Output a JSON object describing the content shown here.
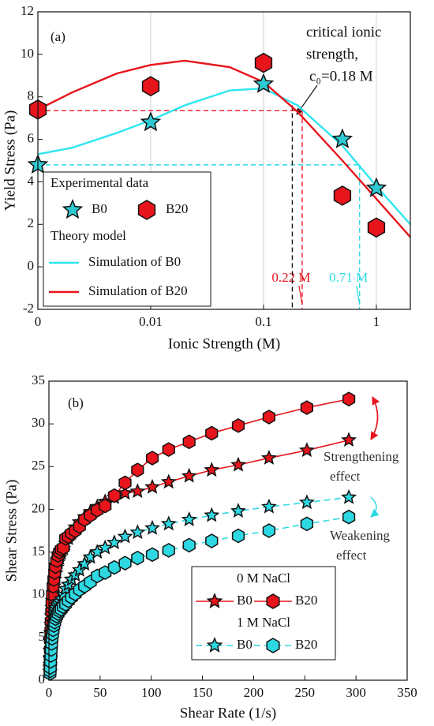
{
  "chart_data": [
    {
      "type": "scatter",
      "panel_label": "(a)",
      "x_label": "Ionic Strength (M)",
      "y_label": "Yield Stress (Pa)",
      "x_log": true,
      "xlim": [
        0.001,
        2
      ],
      "xticks": [
        {
          "value": 0.001,
          "label": "0"
        },
        0.01,
        0.1,
        1
      ],
      "ylim": [
        -2,
        12
      ],
      "yticks": [
        -2,
        0,
        2,
        4,
        6,
        8,
        10,
        12
      ],
      "xgrid": true,
      "legend_titles": [
        "Experimental data",
        "Theory model"
      ],
      "series": [
        {
          "name": "B0",
          "color": "#2ec9d2",
          "marker": "star",
          "x": [
            0.001,
            0.01,
            0.1,
            0.5,
            1
          ],
          "values": [
            4.8,
            6.8,
            8.6,
            6.0,
            3.7
          ]
        },
        {
          "name": "B20",
          "color": "#e8141c",
          "marker": "hexagon",
          "x": [
            0.001,
            0.01,
            0.1,
            0.5,
            1
          ],
          "values": [
            7.4,
            8.5,
            9.6,
            3.35,
            1.85
          ]
        },
        {
          "name": "Simulation of B0",
          "color": "#2ee6f0",
          "x": [
            0.001,
            0.002,
            0.005,
            0.01,
            0.02,
            0.05,
            0.1,
            0.2,
            0.5,
            1,
            2
          ],
          "values": [
            5.3,
            5.6,
            6.3,
            6.9,
            7.6,
            8.3,
            8.4,
            7.6,
            5.7,
            3.8,
            2.0
          ]
        },
        {
          "name": "Simulation of B20",
          "color": "#e8141c",
          "x": [
            0.001,
            0.002,
            0.005,
            0.01,
            0.02,
            0.05,
            0.1,
            0.2,
            0.5,
            1,
            2
          ],
          "values": [
            7.4,
            8.2,
            9.1,
            9.5,
            9.7,
            9.4,
            8.7,
            7.3,
            5.0,
            3.2,
            1.4
          ]
        }
      ],
      "reference_lines": [
        {
          "x": 0.22,
          "y": 7.35,
          "color": "#e8141c",
          "label": "0.22 M"
        },
        {
          "x": 0.71,
          "y": 4.8,
          "color": "#2ed8e2",
          "label": "0.71 M"
        },
        {
          "x": 0.18,
          "y": 7.6,
          "color": "#111111"
        }
      ],
      "annotation": [
        "critical ionic",
        "strength,",
        "c₀=0.18 M"
      ]
    },
    {
      "type": "line",
      "panel_label": "(b)",
      "x_label": "Shear Rate (1/s)",
      "y_label": "Shear Stress (Pa)",
      "xlim": [
        0,
        350
      ],
      "xticks": [
        0,
        50,
        100,
        150,
        200,
        250,
        300,
        350
      ],
      "ylim": [
        0,
        35
      ],
      "yticks": [
        0,
        5,
        10,
        15,
        20,
        25,
        30,
        35
      ],
      "legend_titles": [
        "0 M NaCl",
        "1 M NaCl"
      ],
      "x": [
        1,
        1.2,
        1.4,
        1.6,
        1.9,
        2.2,
        2.6,
        3.0,
        3.5,
        4.1,
        4.8,
        5.6,
        6.5,
        7.6,
        8.9,
        10.3,
        12,
        14,
        16.3,
        19,
        22.1,
        25.7,
        29.9,
        34.8,
        40.5,
        47.2,
        54.9,
        63.9,
        74.4,
        86.6,
        101,
        117,
        137,
        159,
        185,
        215,
        252,
        293
      ],
      "series": [
        {
          "name": "B0",
          "color": "#e8141c",
          "marker": "star",
          "dashed": false,
          "values": [
            1.5,
            2.5,
            3.5,
            4.5,
            5.5,
            6.5,
            7.5,
            8.5,
            9.3,
            10.2,
            11.0,
            11.8,
            12.5,
            13.2,
            13.8,
            14.3,
            14.9,
            15.4,
            16.0,
            16.6,
            17.2,
            17.9,
            18.5,
            19.1,
            19.7,
            20.3,
            20.9,
            21.4,
            21.9,
            22.1,
            22.6,
            23.2,
            23.9,
            24.6,
            25.2,
            26.0,
            26.9,
            28.1
          ]
        },
        {
          "name": "B20",
          "color": "#e8141c",
          "marker": "hexagon",
          "dashed": false,
          "values": [
            1.5,
            2.5,
            3.6,
            4.7,
            5.8,
            6.9,
            8.0,
            9.0,
            10.0,
            11.0,
            11.8,
            12.6,
            13.3,
            14.0,
            14.6,
            15.0,
            15.3,
            15.5,
            16.6,
            16.8,
            17.2,
            17.5,
            18.0,
            18.8,
            19.3,
            19.9,
            20.4,
            21.6,
            23.1,
            24.6,
            26.0,
            27.0,
            27.9,
            28.9,
            29.8,
            30.8,
            31.9,
            32.9
          ]
        },
        {
          "name": "B0",
          "color": "#2ed8e2",
          "marker": "star",
          "dashed": true,
          "values": [
            1.0,
            1.8,
            2.6,
            3.4,
            4.2,
            5.0,
            5.6,
            6.2,
            6.8,
            7.3,
            7.8,
            8.2,
            8.5,
            8.8,
            9.0,
            9.2,
            9.5,
            10.0,
            10.7,
            11.2,
            11.8,
            12.3,
            12.9,
            13.6,
            14.4,
            15.0,
            15.5,
            16.1,
            16.8,
            17.3,
            17.8,
            18.3,
            18.8,
            19.3,
            19.8,
            20.3,
            20.8,
            21.4
          ]
        },
        {
          "name": "B20",
          "color": "#2ed8e2",
          "marker": "hexagon",
          "dashed": true,
          "values": [
            0.8,
            1.1,
            1.5,
            2.2,
            2.9,
            3.6,
            4.3,
            4.9,
            5.4,
            5.9,
            6.4,
            6.8,
            7.2,
            7.5,
            7.8,
            8.1,
            8.3,
            8.6,
            8.9,
            9.3,
            9.7,
            10.1,
            10.6,
            11.0,
            11.5,
            12.2,
            12.6,
            13.2,
            13.7,
            14.3,
            14.7,
            15.2,
            15.8,
            16.3,
            16.9,
            17.5,
            18.3,
            19.1
          ]
        }
      ],
      "annotations": [
        [
          "Strengthening",
          "effect"
        ],
        [
          "Weakening",
          "effect"
        ]
      ]
    }
  ]
}
